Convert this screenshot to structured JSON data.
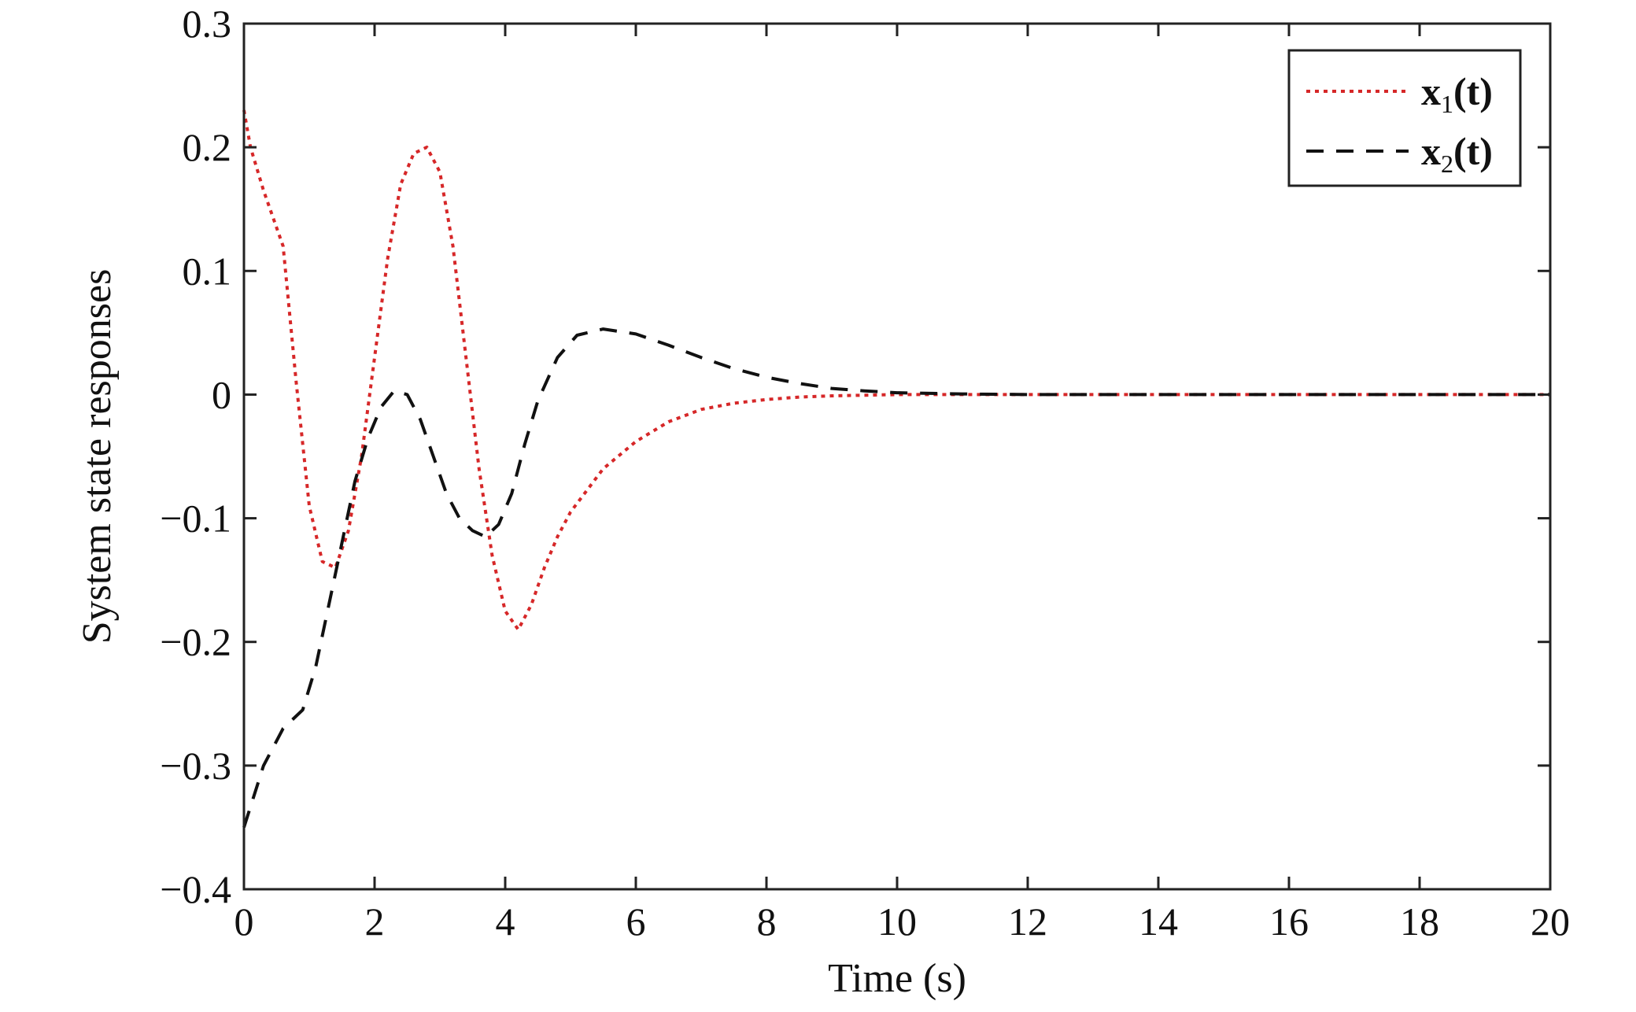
{
  "chart_data": {
    "type": "line",
    "title": "",
    "xlabel": "Time (s)",
    "ylabel": "System state responses",
    "xlim": [
      0,
      20
    ],
    "ylim": [
      -0.4,
      0.3
    ],
    "xticks": [
      0,
      2,
      4,
      6,
      8,
      10,
      12,
      14,
      16,
      18,
      20
    ],
    "yticks": [
      0.3,
      0.2,
      0.1,
      0,
      -0.1,
      -0.2,
      -0.3,
      -0.4
    ],
    "xtick_labels": [
      "0",
      "2",
      "4",
      "6",
      "8",
      "10",
      "12",
      "14",
      "16",
      "18",
      "20"
    ],
    "ytick_labels": [
      "0.3",
      "0.2",
      "0.1",
      "0",
      "−0.1",
      "−0.2",
      "−0.3",
      "−0.4"
    ],
    "grid": false,
    "legend_position": "top-right",
    "series": [
      {
        "name": "x1(t)",
        "legend_main": "x",
        "legend_sub": "1",
        "legend_tail": "(t)",
        "color": "#d62728",
        "style": "dotted",
        "x": [
          0,
          0.1,
          0.3,
          0.6,
          0.8,
          1.0,
          1.2,
          1.4,
          1.6,
          1.8,
          2.0,
          2.2,
          2.4,
          2.6,
          2.8,
          3.0,
          3.2,
          3.4,
          3.6,
          3.8,
          4.0,
          4.2,
          4.4,
          4.6,
          4.8,
          5.0,
          5.5,
          6.0,
          6.5,
          7.0,
          7.5,
          8.0,
          8.5,
          9.0,
          10.0,
          11.0,
          12.0,
          14.0,
          16.0,
          18.0,
          20.0
        ],
        "y": [
          0.23,
          0.2,
          0.165,
          0.12,
          0.01,
          -0.09,
          -0.135,
          -0.14,
          -0.11,
          -0.05,
          0.03,
          0.11,
          0.17,
          0.195,
          0.2,
          0.18,
          0.12,
          0.03,
          -0.06,
          -0.13,
          -0.175,
          -0.19,
          -0.17,
          -0.14,
          -0.115,
          -0.095,
          -0.06,
          -0.038,
          -0.022,
          -0.012,
          -0.007,
          -0.004,
          -0.002,
          -0.001,
          0,
          0,
          0,
          0,
          0,
          0,
          0
        ]
      },
      {
        "name": "x2(t)",
        "legend_main": "x",
        "legend_sub": "2",
        "legend_tail": "(t)",
        "color": "#111111",
        "style": "dashed",
        "x": [
          0,
          0.3,
          0.6,
          0.9,
          1.1,
          1.3,
          1.5,
          1.7,
          1.9,
          2.1,
          2.3,
          2.5,
          2.7,
          2.9,
          3.1,
          3.3,
          3.5,
          3.7,
          3.9,
          4.1,
          4.3,
          4.5,
          4.8,
          5.1,
          5.5,
          6.0,
          6.5,
          7.0,
          7.5,
          8.0,
          8.5,
          9.0,
          9.5,
          10.0,
          11.0,
          12.0,
          14.0,
          16.0,
          18.0,
          20.0
        ],
        "y": [
          -0.35,
          -0.3,
          -0.27,
          -0.255,
          -0.22,
          -0.17,
          -0.12,
          -0.07,
          -0.035,
          -0.01,
          0.003,
          0.0,
          -0.02,
          -0.05,
          -0.08,
          -0.1,
          -0.11,
          -0.115,
          -0.105,
          -0.08,
          -0.04,
          -0.005,
          0.03,
          0.048,
          0.053,
          0.049,
          0.04,
          0.03,
          0.021,
          0.014,
          0.009,
          0.005,
          0.003,
          0.0015,
          0.0005,
          0,
          0,
          0,
          0,
          0
        ]
      }
    ]
  }
}
